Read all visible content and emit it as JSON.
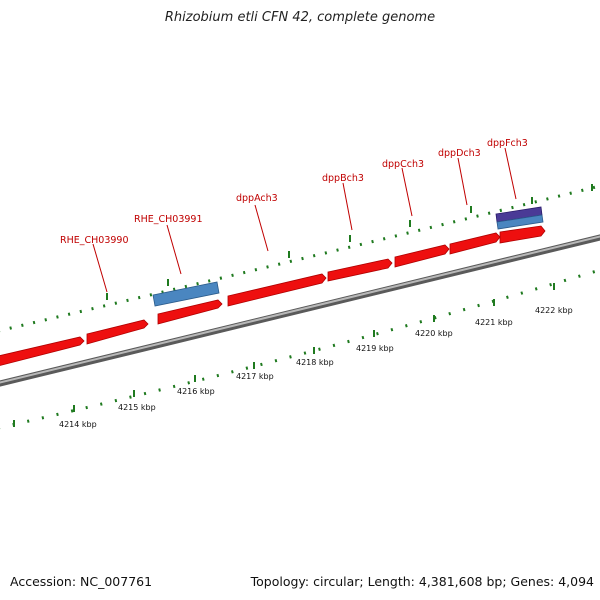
{
  "title": "Rhizobium etli CFN 42, complete genome",
  "footer": {
    "accession": "Accession: NC_007761",
    "stats": "Topology: circular; Length: 4,381,608 bp; Genes: 4,094"
  },
  "colors": {
    "forward_gene": "#ee0f0f",
    "blue_feature": "#4a86c0",
    "purple_feature": "#4a3a96",
    "backbone": "#8a8a8a",
    "ticks": "#1f7a1f",
    "label": "#c00000"
  },
  "diagram": {
    "kbp_ticks": [
      "4214 kbp",
      "4215 kbp",
      "4216 kbp",
      "4217 kbp",
      "4218 kbp",
      "4219 kbp",
      "4220 kbp",
      "4221 kbp",
      "4222 kbp"
    ],
    "gene_labels": [
      "RHE_CH03990",
      "RHE_CH03991",
      "dppAch3",
      "dppBch3",
      "dppCch3",
      "dppDch3",
      "dppFch3"
    ]
  }
}
